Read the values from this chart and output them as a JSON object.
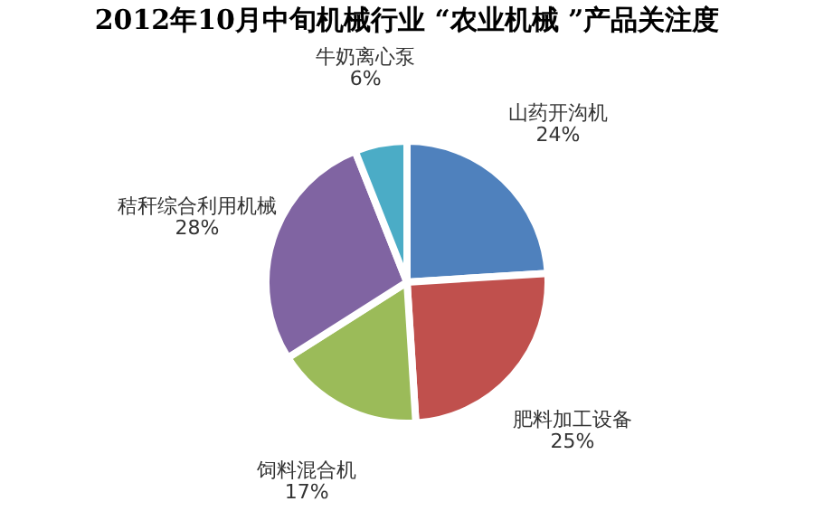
{
  "chart_data": {
    "type": "pie",
    "title": "2012年10月中旬机械行业 “农业机械 ”产品关注度",
    "categories": [
      "山药开沟机",
      "肥料加工设备",
      "饲料混合机",
      "秸秆综合利用机械",
      "牛奶离心泵"
    ],
    "values": [
      24,
      25,
      17,
      28,
      6
    ],
    "colors": [
      "#4f81bd",
      "#c0504d",
      "#9bbb59",
      "#8064a2",
      "#4bacc6"
    ],
    "value_labels": [
      "24%",
      "25%",
      "17%",
      "28%",
      "6%"
    ],
    "legend": false
  }
}
